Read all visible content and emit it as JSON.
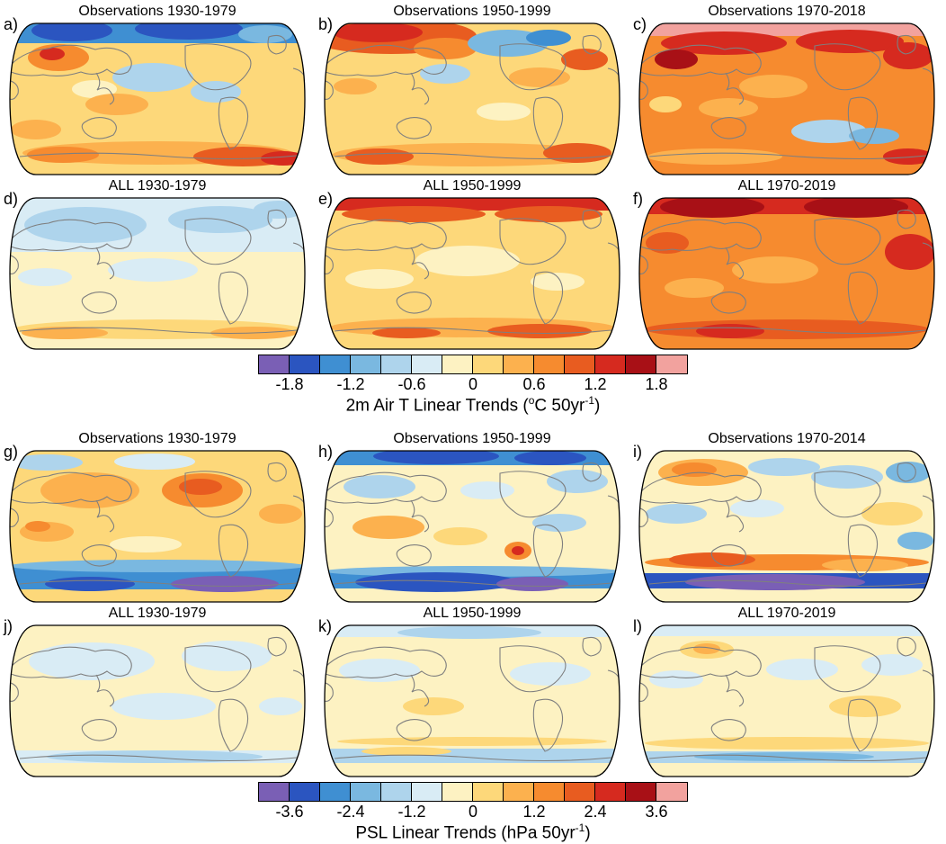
{
  "figure": {
    "background": "#ffffff",
    "sections": [
      {
        "name": "air-temperature-trends",
        "panels": [
          {
            "label": "a)",
            "title": "Observations 1930-1979"
          },
          {
            "label": "b)",
            "title": "Observations 1950-1999"
          },
          {
            "label": "c)",
            "title": "Observations 1970-2018"
          },
          {
            "label": "d)",
            "title": "ALL 1930-1979"
          },
          {
            "label": "e)",
            "title": "ALL 1950-1999"
          },
          {
            "label": "f)",
            "title": "ALL 1970-2019"
          }
        ],
        "colorbar": {
          "ticks": [
            "-1.8",
            "-1.2",
            "-0.6",
            "0",
            "0.6",
            "1.2",
            "1.8"
          ],
          "colors": [
            "#7a5fb5",
            "#2b55c0",
            "#3f8fd2",
            "#7ab8e0",
            "#aed4ec",
            "#d9ecf5",
            "#fdf2c2",
            "#fdd87a",
            "#fcb14e",
            "#f68b2f",
            "#e85c20",
            "#d62a1f",
            "#a81016",
            "#f2a29e"
          ],
          "caption": [
            {
              "text": "2m Air T Linear Trends ("
            },
            {
              "text": "o",
              "sup": true
            },
            {
              "text": "C 50yr"
            },
            {
              "text": "-1",
              "sup": true
            },
            {
              "text": ")"
            }
          ]
        }
      },
      {
        "name": "sea-level-pressure-trends",
        "panels": [
          {
            "label": "g)",
            "title": "Observations 1930-1979"
          },
          {
            "label": "h)",
            "title": "Observations 1950-1999"
          },
          {
            "label": "i)",
            "title": "Observations 1970-2014"
          },
          {
            "label": "j)",
            "title": "ALL 1930-1979"
          },
          {
            "label": "k)",
            "title": "ALL 1950-1999"
          },
          {
            "label": "l)",
            "title": "ALL 1970-2019"
          }
        ],
        "colorbar": {
          "ticks": [
            "-3.6",
            "-2.4",
            "-1.2",
            "0",
            "1.2",
            "2.4",
            "3.6"
          ],
          "colors": [
            "#7a5fb5",
            "#2b55c0",
            "#3f8fd2",
            "#7ab8e0",
            "#aed4ec",
            "#d9ecf5",
            "#fdf2c2",
            "#fdd87a",
            "#fcb14e",
            "#f68b2f",
            "#e85c20",
            "#d62a1f",
            "#a81016",
            "#f2a29e"
          ],
          "caption": [
            {
              "text": "PSL Linear Trends (hPa 50yr"
            },
            {
              "text": "-1",
              "sup": true
            },
            {
              "text": ")"
            }
          ]
        }
      }
    ]
  },
  "chart_data": [
    {
      "type": "heatmap",
      "variant": "filled-contour-global-maps",
      "projection": "Robinson",
      "title": "2m Air T Linear Trends (oC 50yr-1)",
      "units": "degC per 50 years",
      "panels": [
        {
          "id": "a)",
          "title": "Observations 1930-1979",
          "pattern": "mixed weak warming/cooling; cooling N Pacific and tropics patches, warming NW Eurasia and Southern Ocean edge"
        },
        {
          "id": "b)",
          "title": "Observations 1950-1999",
          "pattern": "strong warming high-latitude Eurasia/Arctic, cooling N Pacific blob, moderate warming elsewhere"
        },
        {
          "id": "c)",
          "title": "Observations 1970-2018",
          "pattern": "widespread strong warming, strongest Arctic; weak cooling Southern Ocean sector"
        },
        {
          "id": "d)",
          "title": "ALL 1930-1979",
          "pattern": "weak cooling/neutral over N Hemisphere, weak warming Southern Ocean band"
        },
        {
          "id": "e)",
          "title": "ALL 1950-1999",
          "pattern": "moderate warming, strong Arctic warming band, warm Southern Ocean band"
        },
        {
          "id": "f)",
          "title": "ALL 1970-2019",
          "pattern": "strong global warming, strongest over Arctic and continents"
        }
      ],
      "colorbar": {
        "tick_labels": [
          -1.8,
          -1.2,
          -0.6,
          0,
          0.6,
          1.2,
          1.8
        ],
        "level_step": 0.3,
        "range": [
          -2.1,
          2.1
        ],
        "n_colors": 14,
        "colors": [
          "#7a5fb5",
          "#2b55c0",
          "#3f8fd2",
          "#7ab8e0",
          "#aed4ec",
          "#d9ecf5",
          "#fdf2c2",
          "#fdd87a",
          "#fcb14e",
          "#f68b2f",
          "#e85c20",
          "#d62a1f",
          "#a81016",
          "#f2a29e"
        ],
        "position": "bottom"
      }
    },
    {
      "type": "heatmap",
      "variant": "filled-contour-global-maps",
      "projection": "Robinson",
      "title": "PSL Linear Trends (hPa 50yr-1)",
      "units": "hPa per 50 years",
      "panels": [
        {
          "id": "g)",
          "title": "Observations 1930-1979",
          "pattern": "positive trends N America/N Pacific, strong negative band over Southern Ocean/Antarctica"
        },
        {
          "id": "h)",
          "title": "Observations 1950-1999",
          "pattern": "negative Arctic band, positive subtropics, strong negative Southern Ocean band with positive spot near S America"
        },
        {
          "id": "i)",
          "title": "Observations 1970-2014",
          "pattern": "mixed weak trends, positive midlatitude ring, strong negative band around Antarctica"
        },
        {
          "id": "j)",
          "title": "ALL 1930-1979",
          "pattern": "weak negative/neutral trends globally"
        },
        {
          "id": "k)",
          "title": "ALL 1950-1999",
          "pattern": "weak negative poles, weak positive subtropics"
        },
        {
          "id": "l)",
          "title": "ALL 1970-2019",
          "pattern": "weak positive subtropical band, weak negative poles"
        }
      ],
      "colorbar": {
        "tick_labels": [
          -3.6,
          -2.4,
          -1.2,
          0,
          1.2,
          2.4,
          3.6
        ],
        "level_step": 0.6,
        "range": [
          -4.2,
          4.2
        ],
        "n_colors": 14,
        "colors": [
          "#7a5fb5",
          "#2b55c0",
          "#3f8fd2",
          "#7ab8e0",
          "#aed4ec",
          "#d9ecf5",
          "#fdf2c2",
          "#fdd87a",
          "#fcb14e",
          "#f68b2f",
          "#e85c20",
          "#d62a1f",
          "#a81016",
          "#f2a29e"
        ],
        "position": "bottom"
      }
    }
  ]
}
